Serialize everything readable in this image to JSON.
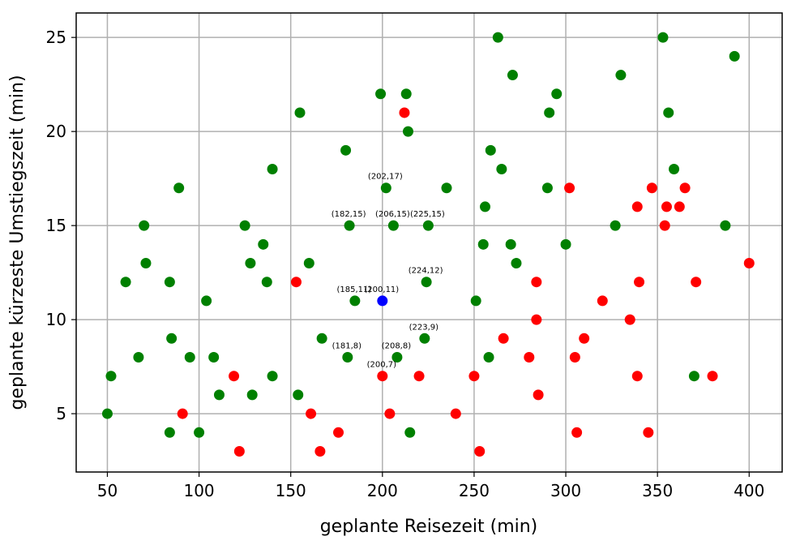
{
  "chart_data": {
    "type": "scatter",
    "title": "",
    "xlabel": "geplante Reisezeit (min)",
    "ylabel": "geplante kürzeste Umstiegszeit (min)",
    "xlim": [
      33,
      418
    ],
    "ylim": [
      1.9,
      26.3
    ],
    "xticks": [
      50,
      100,
      150,
      200,
      250,
      300,
      350,
      400
    ],
    "yticks": [
      5,
      10,
      15,
      20,
      25
    ],
    "grid": true,
    "colors": {
      "green": "#008000",
      "red": "#ff0000",
      "blue": "#0000ff"
    },
    "series": [
      {
        "name": "green",
        "color": "#008000",
        "points": [
          [
            50,
            5
          ],
          [
            52,
            7
          ],
          [
            60,
            12
          ],
          [
            67,
            8
          ],
          [
            70,
            15
          ],
          [
            71,
            13
          ],
          [
            84,
            12
          ],
          [
            84,
            4
          ],
          [
            85,
            9
          ],
          [
            89,
            17
          ],
          [
            95,
            8
          ],
          [
            100,
            4
          ],
          [
            104,
            11
          ],
          [
            108,
            8
          ],
          [
            111,
            6
          ],
          [
            125,
            15
          ],
          [
            128,
            13
          ],
          [
            129,
            6
          ],
          [
            135,
            14
          ],
          [
            137,
            12
          ],
          [
            140,
            18
          ],
          [
            140,
            7
          ],
          [
            154,
            6
          ],
          [
            155,
            21
          ],
          [
            160,
            13
          ],
          [
            167,
            9
          ],
          [
            180,
            19
          ],
          [
            181,
            8
          ],
          [
            182,
            15
          ],
          [
            185,
            11
          ],
          [
            199,
            22
          ],
          [
            202,
            17
          ],
          [
            206,
            15
          ],
          [
            208,
            8
          ],
          [
            213,
            22
          ],
          [
            214,
            20
          ],
          [
            215,
            4
          ],
          [
            223,
            9
          ],
          [
            224,
            12
          ],
          [
            225,
            15
          ],
          [
            235,
            17
          ],
          [
            251,
            11
          ],
          [
            255,
            14
          ],
          [
            256,
            16
          ],
          [
            258,
            8
          ],
          [
            259,
            19
          ],
          [
            263,
            25
          ],
          [
            265,
            18
          ],
          [
            270,
            14
          ],
          [
            271,
            23
          ],
          [
            273,
            13
          ],
          [
            290,
            17
          ],
          [
            291,
            21
          ],
          [
            295,
            22
          ],
          [
            300,
            14
          ],
          [
            327,
            15
          ],
          [
            330,
            23
          ],
          [
            353,
            25
          ],
          [
            356,
            21
          ],
          [
            359,
            18
          ],
          [
            370,
            7
          ],
          [
            387,
            15
          ],
          [
            392,
            24
          ]
        ]
      },
      {
        "name": "red",
        "color": "#ff0000",
        "points": [
          [
            91,
            5
          ],
          [
            119,
            7
          ],
          [
            122,
            3
          ],
          [
            153,
            12
          ],
          [
            161,
            5
          ],
          [
            166,
            3
          ],
          [
            176,
            4
          ],
          [
            200,
            7
          ],
          [
            204,
            5
          ],
          [
            212,
            21
          ],
          [
            220,
            7
          ],
          [
            240,
            5
          ],
          [
            250,
            7
          ],
          [
            253,
            3
          ],
          [
            266,
            9
          ],
          [
            280,
            8
          ],
          [
            284,
            12
          ],
          [
            284,
            10
          ],
          [
            285,
            6
          ],
          [
            302,
            17
          ],
          [
            305,
            8
          ],
          [
            306,
            4
          ],
          [
            310,
            9
          ],
          [
            320,
            11
          ],
          [
            335,
            10
          ],
          [
            339,
            16
          ],
          [
            339,
            7
          ],
          [
            340,
            12
          ],
          [
            345,
            4
          ],
          [
            347,
            17
          ],
          [
            354,
            15
          ],
          [
            355,
            16
          ],
          [
            362,
            16
          ],
          [
            365,
            17
          ],
          [
            371,
            12
          ],
          [
            380,
            7
          ],
          [
            400,
            13
          ]
        ]
      },
      {
        "name": "blue",
        "color": "#0000ff",
        "points": [
          [
            200,
            11
          ]
        ]
      }
    ],
    "annotations": [
      {
        "text": "(202,17)",
        "x": 202,
        "y": 17
      },
      {
        "text": "(182,15)",
        "x": 182,
        "y": 15
      },
      {
        "text": "(206,15)",
        "x": 206,
        "y": 15
      },
      {
        "text": "(225,15)",
        "x": 225,
        "y": 15
      },
      {
        "text": "(224,12)",
        "x": 224,
        "y": 12
      },
      {
        "text": "(185,11)",
        "x": 185,
        "y": 11
      },
      {
        "text": "(200,11)",
        "x": 200,
        "y": 11
      },
      {
        "text": "(223,9)",
        "x": 223,
        "y": 9
      },
      {
        "text": "(181,8)",
        "x": 181,
        "y": 8
      },
      {
        "text": "(208,8)",
        "x": 208,
        "y": 8
      },
      {
        "text": "(200,7)",
        "x": 200,
        "y": 7
      }
    ]
  }
}
